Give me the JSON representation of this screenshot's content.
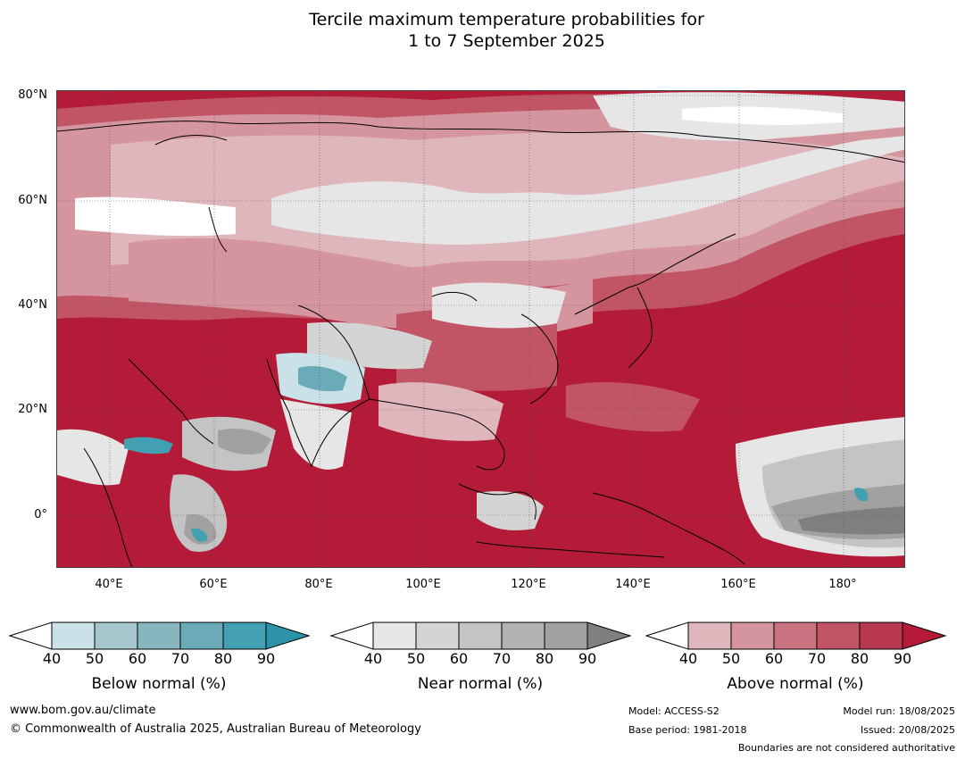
{
  "title": {
    "line1": "Tercile maximum temperature probabilities for",
    "line2": "1 to 7 September 2025"
  },
  "map": {
    "region": "Asia and western Pacific",
    "lat_labels": [
      "80°N",
      "60°N",
      "40°N",
      "20°N",
      "0°"
    ],
    "lon_labels": [
      "40°E",
      "60°E",
      "80°E",
      "100°E",
      "120°E",
      "140°E",
      "160°E",
      "180°"
    ],
    "dominant_category": "Above normal",
    "dominant_color": "#b31b38"
  },
  "legends": [
    {
      "title": "Below normal (%)",
      "ticks": [
        "40",
        "50",
        "60",
        "70",
        "80",
        "90"
      ],
      "colors": [
        "#ffffff",
        "#c9e1e7",
        "#a6c7cc",
        "#88b6bf",
        "#6aabb7",
        "#43a0b2",
        "#2c93a8"
      ]
    },
    {
      "title": "Near normal (%)",
      "ticks": [
        "40",
        "50",
        "60",
        "70",
        "80",
        "90"
      ],
      "colors": [
        "#ffffff",
        "#e6e6e6",
        "#d4d4d4",
        "#c4c4c4",
        "#b2b2b2",
        "#a1a1a1",
        "#7f7f7f"
      ]
    },
    {
      "title": "Above normal (%)",
      "ticks": [
        "40",
        "50",
        "60",
        "70",
        "80",
        "90"
      ],
      "colors": [
        "#ffffff",
        "#e0b6bd",
        "#d5959e",
        "#c97380",
        "#c15566",
        "#b8384f",
        "#b31b38"
      ]
    }
  ],
  "footer": {
    "website": "www.bom.gov.au/climate",
    "copyright": "© Commonwealth of Australia 2025, Australian Bureau of Meteorology",
    "model": "Model: ACCESS-S2",
    "base_period": "Base period: 1981-2018",
    "model_run": "Model run: 18/08/2025",
    "issued": "Issued: 20/08/2025",
    "boundaries_note": "Boundaries are not considered authoritative"
  }
}
